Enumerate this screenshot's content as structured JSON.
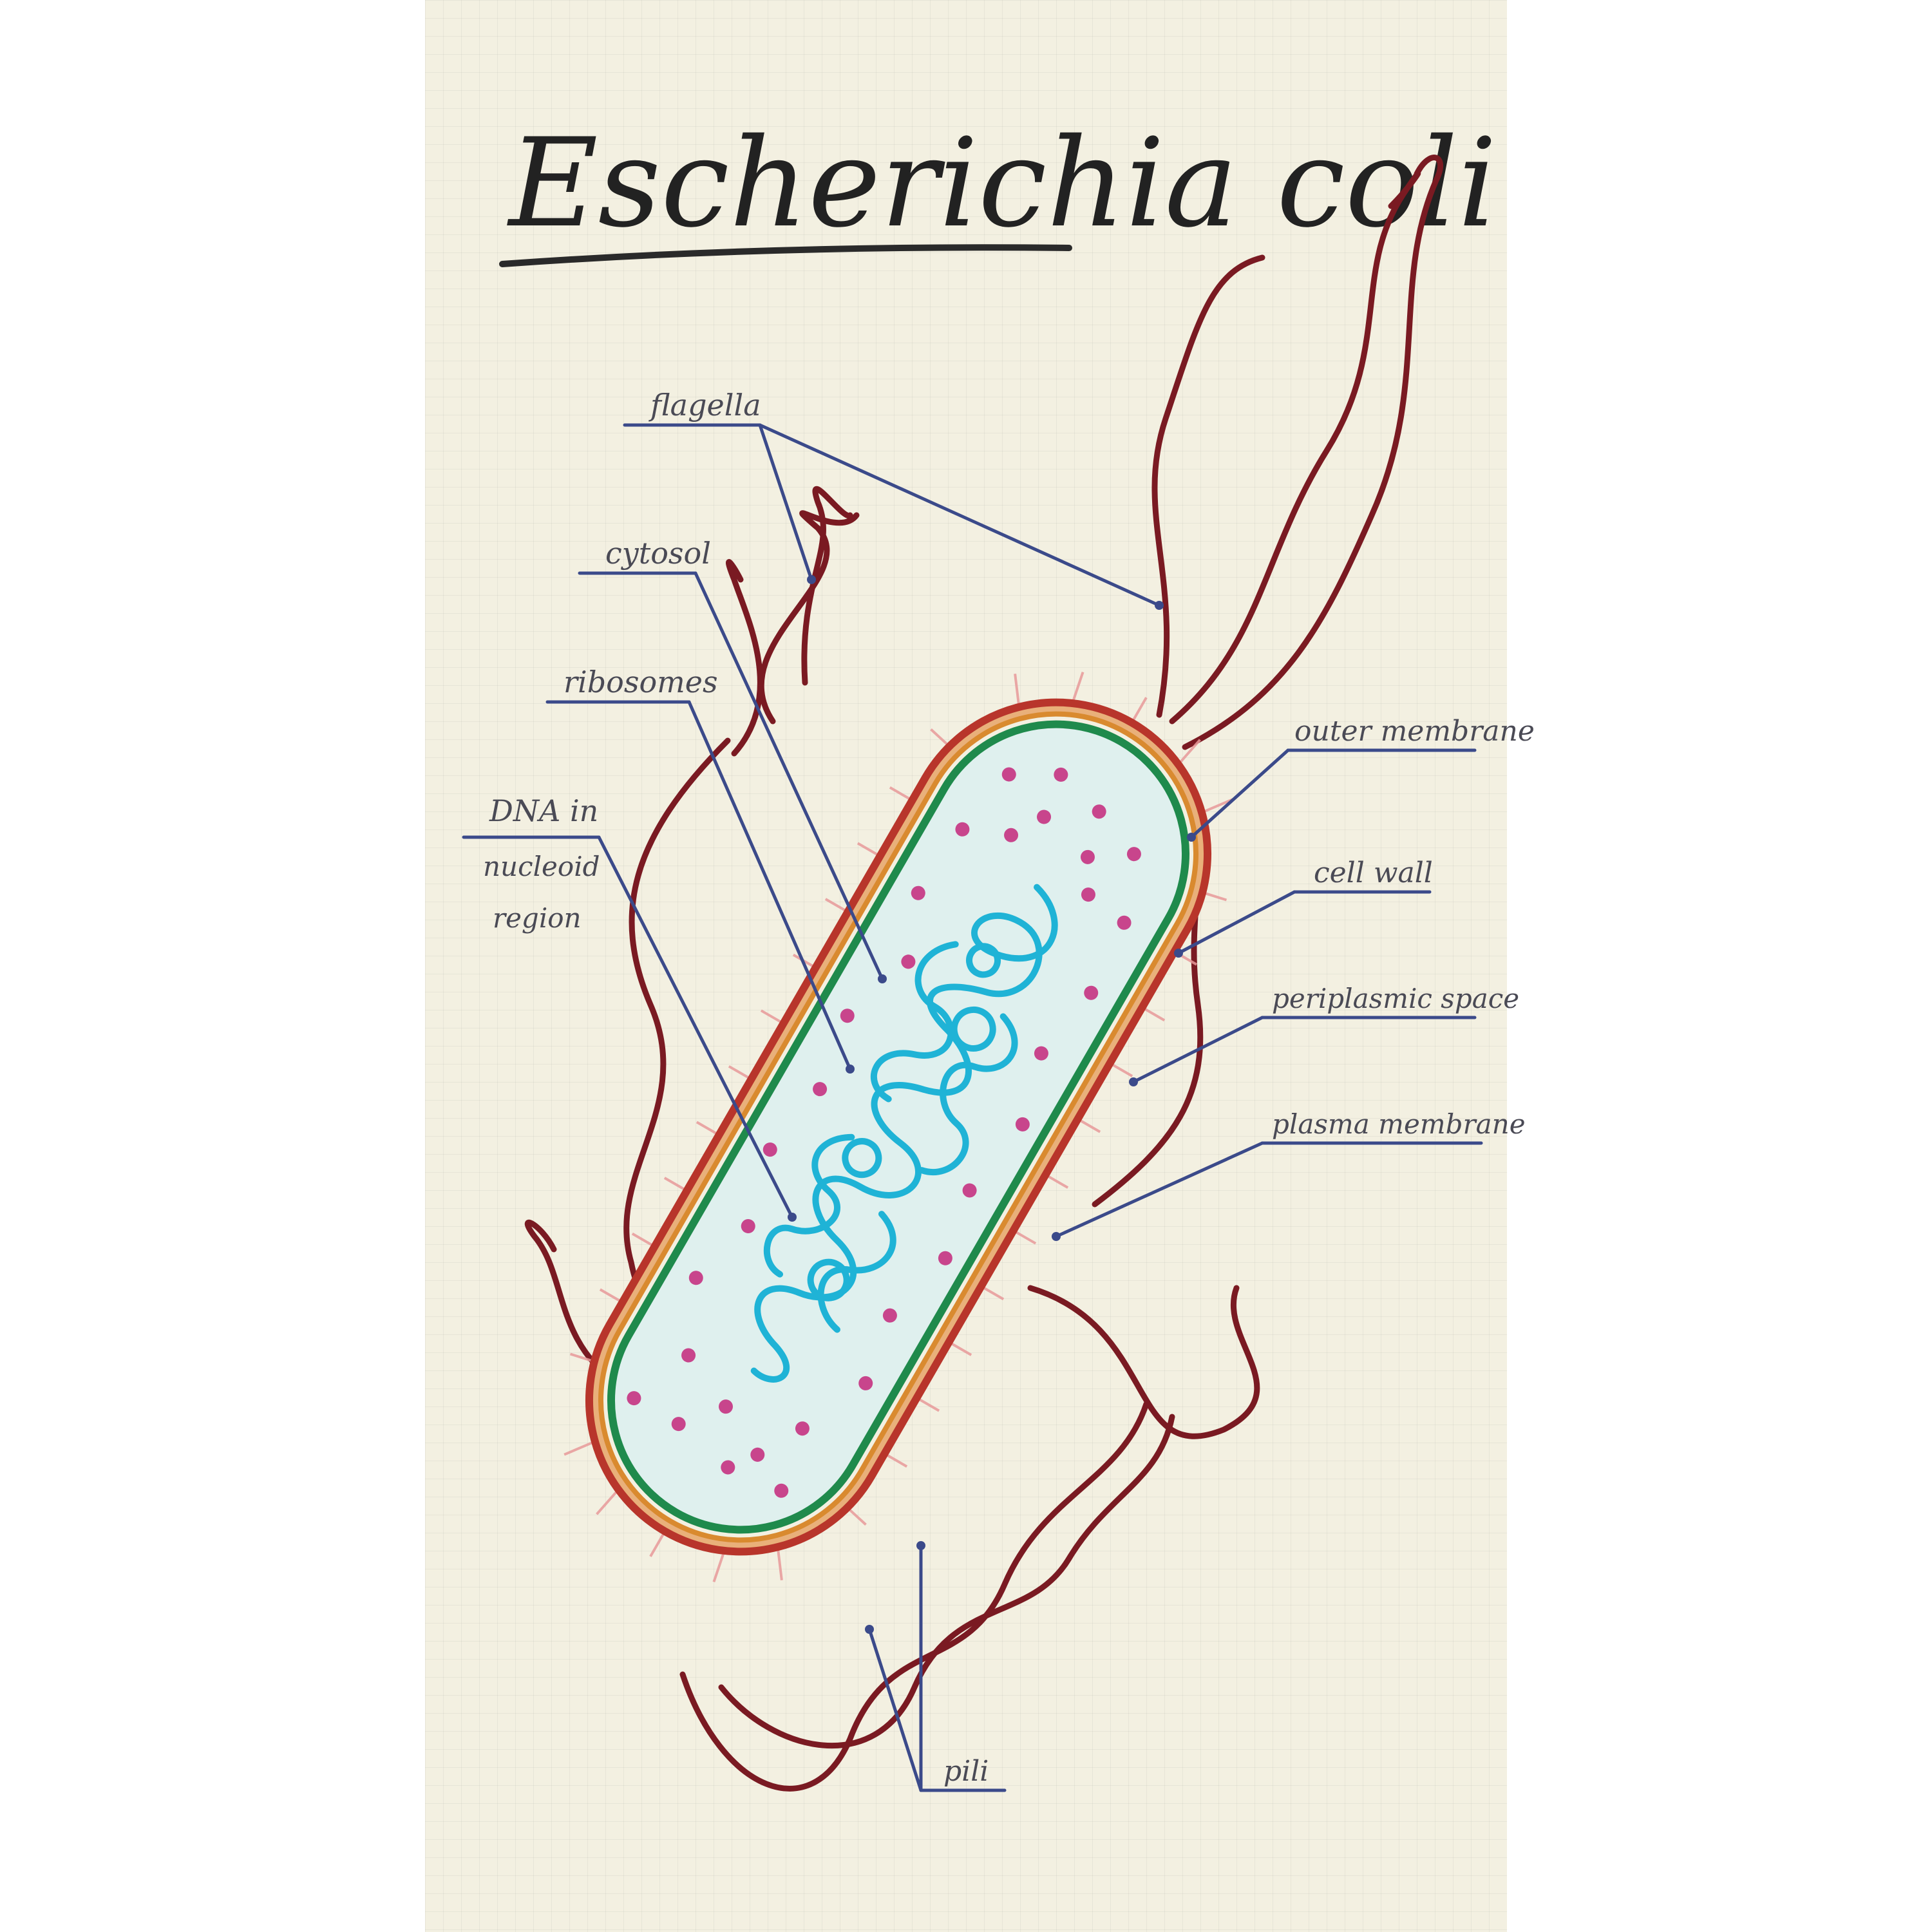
{
  "title": "Escherichia coli",
  "labels": {
    "flagella": "flagella",
    "cytosol": "cytosol",
    "ribosomes": "ribosomes",
    "dna_line1": "DNA in",
    "dna_line2": "nucleoid",
    "dna_line3": "region",
    "outer_membrane": "outer membrane",
    "cell_wall": "cell wall",
    "periplasmic_space": "periplasmic space",
    "plasma_membrane": "plasma membrane",
    "pili": "pili"
  },
  "colors": {
    "background": "#f3f0e1",
    "flagella": "#7a1a22",
    "outer_membrane": "#b8352b",
    "cell_wall": "#d98a2f",
    "plasma_membrane": "#1f8a4c",
    "cytoplasm": "#dff0ee",
    "ribosomes": "#c8458c",
    "dna": "#1fb3d6",
    "pili": "#e89a9a",
    "leader_lines": "#3b4a8a"
  }
}
